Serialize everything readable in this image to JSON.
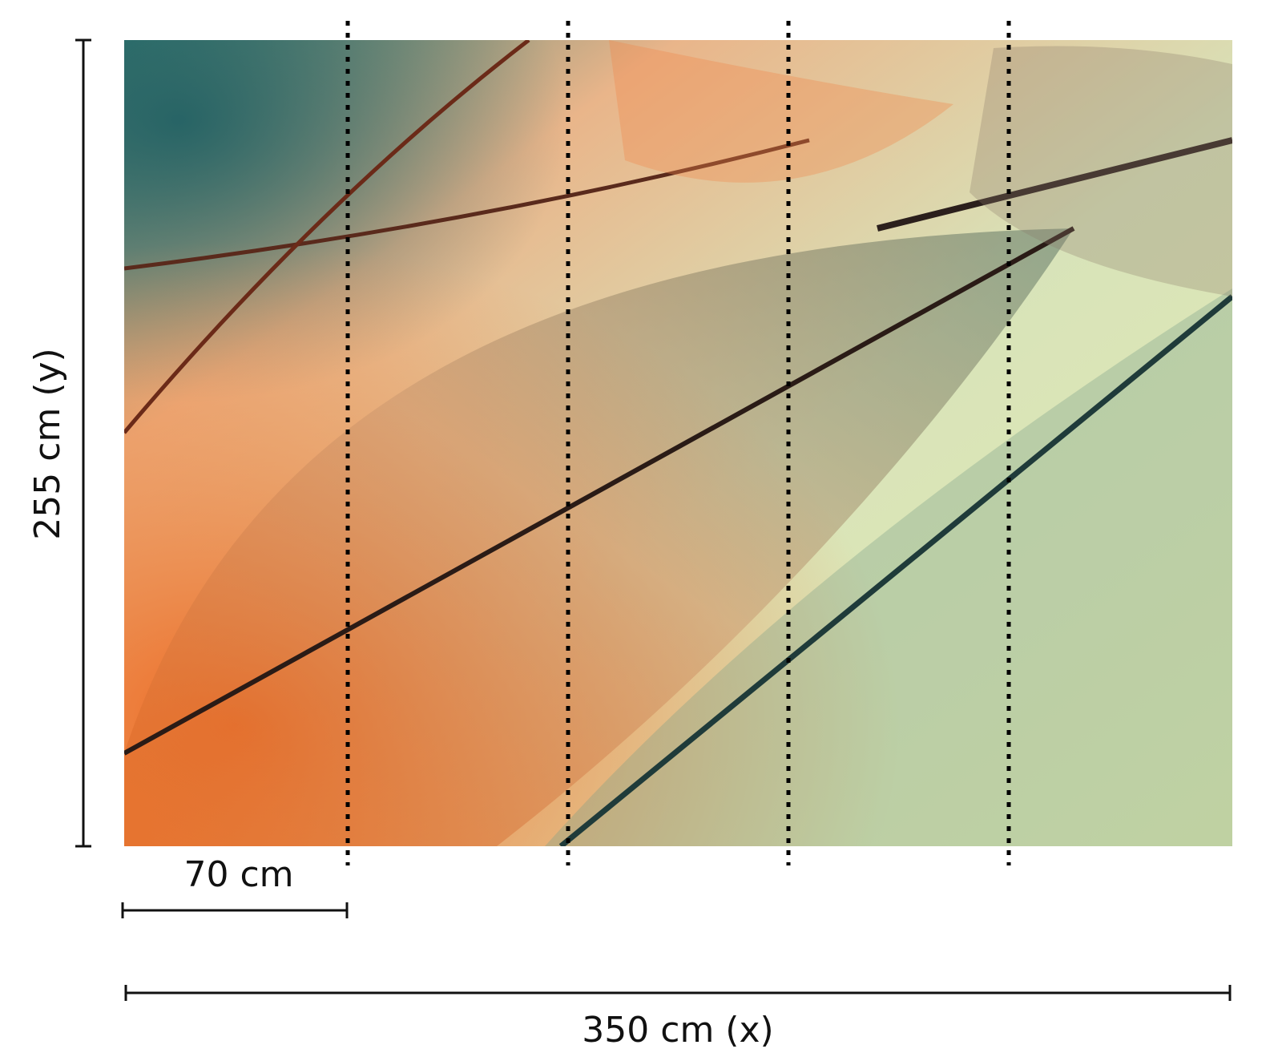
{
  "dimensions": {
    "height": "255 cm (y)",
    "panel_width": "70 cm",
    "width": "350 cm (x)"
  }
}
